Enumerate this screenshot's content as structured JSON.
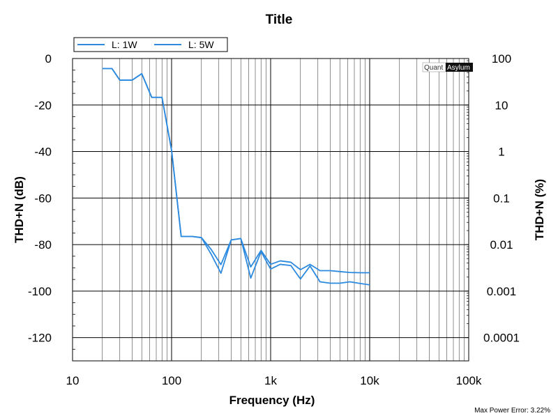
{
  "chart_data": {
    "type": "line",
    "title": "Title",
    "xlabel": "Frequency (Hz)",
    "ylabel": "THD+N (dB)",
    "y2label": "THD+N (%)",
    "xscale": "log",
    "xlim": [
      10,
      100000
    ],
    "ylim": [
      -130,
      0
    ],
    "y2scale": "log",
    "y2lim": [
      3.162e-05,
      100
    ],
    "grid": true,
    "legend_position": "top-left",
    "x_ticks": [
      {
        "value": 10,
        "label": "10"
      },
      {
        "value": 100,
        "label": "100"
      },
      {
        "value": 1000,
        "label": "1k"
      },
      {
        "value": 10000,
        "label": "10k"
      },
      {
        "value": 100000,
        "label": "100k"
      }
    ],
    "y_ticks": [
      {
        "value": 0,
        "label": "0"
      },
      {
        "value": -20,
        "label": "-20"
      },
      {
        "value": -40,
        "label": "-40"
      },
      {
        "value": -60,
        "label": "-60"
      },
      {
        "value": -80,
        "label": "-80"
      },
      {
        "value": -100,
        "label": "-100"
      },
      {
        "value": -120,
        "label": "-120"
      }
    ],
    "y2_ticks": [
      {
        "value": 100,
        "label": "100"
      },
      {
        "value": 10,
        "label": "10"
      },
      {
        "value": 1,
        "label": "1"
      },
      {
        "value": 0.1,
        "label": "0.1"
      },
      {
        "value": 0.01,
        "label": "0.01"
      },
      {
        "value": 0.001,
        "label": "0.001"
      },
      {
        "value": 0.0001,
        "label": "0.0001"
      }
    ],
    "series": [
      {
        "name": "L: 1W",
        "color": "#2b8ae0",
        "x": [
          20,
          25,
          30,
          40,
          50,
          63,
          80,
          100,
          125,
          160,
          200,
          250,
          315,
          400,
          500,
          630,
          800,
          1000,
          1250,
          1600,
          2000,
          2500,
          3150,
          4000,
          5000,
          6300,
          8000,
          10000
        ],
        "y": [
          -4.3,
          -4.3,
          -9.3,
          -9.3,
          -6.5,
          -16.7,
          -16.7,
          -39.5,
          -76.5,
          -76.5,
          -77,
          -82,
          -88.6,
          -78,
          -77.4,
          -89.6,
          -82.5,
          -88.5,
          -87,
          -87.6,
          -90.8,
          -88.5,
          -91.2,
          -91.2,
          -91.6,
          -92,
          -92.1,
          -92.1
        ]
      },
      {
        "name": "L: 5W",
        "color": "#2b8ae0",
        "x": [
          20,
          25,
          30,
          40,
          50,
          63,
          80,
          100,
          125,
          160,
          200,
          250,
          315,
          400,
          500,
          630,
          800,
          1000,
          1250,
          1600,
          2000,
          2500,
          3150,
          4000,
          5000,
          6300,
          8000,
          10000
        ],
        "y": [
          -4.3,
          -4.3,
          -9.3,
          -9.3,
          -6.5,
          -16.7,
          -16.7,
          -39.5,
          -76.5,
          -76.5,
          -77,
          -84,
          -92.3,
          -78,
          -77.4,
          -94.4,
          -83,
          -90.5,
          -88.5,
          -89,
          -94.8,
          -89.2,
          -96,
          -96.6,
          -96.6,
          -96,
          -96.7,
          -97.3
        ]
      }
    ]
  },
  "branding": {
    "part1": "Quant",
    "part2": "Asylum"
  },
  "footnote": "Max Power Error: 3.22%"
}
